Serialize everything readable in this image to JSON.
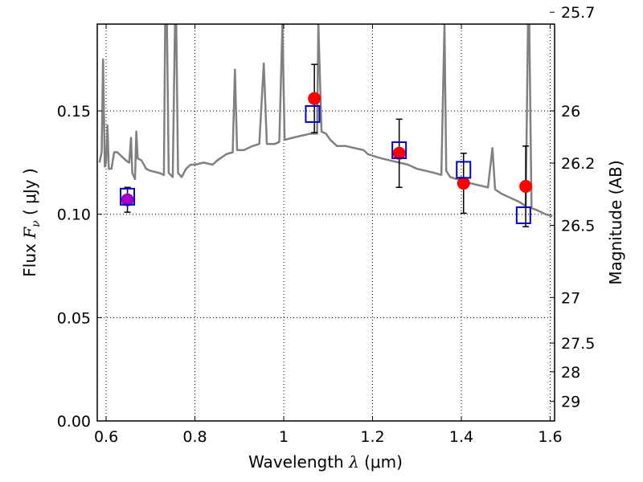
{
  "chart_data": {
    "type": "scatter",
    "xlabel": "Wavelength",
    "xlabel_math": "λ",
    "xlabel_unit": "(μm)",
    "ylabel": "Flux",
    "ylabel_math": "F",
    "ylabel_math_sub": "ν",
    "ylabel_unit": "( μJy )",
    "y2label": "Magnitude (AB)",
    "xlim": [
      0.58,
      1.61
    ],
    "ylim": [
      0.0,
      0.192
    ],
    "grid": true,
    "x_ticks": [
      {
        "value": 0.6,
        "label": "0.6"
      },
      {
        "value": 0.8,
        "label": "0.8"
      },
      {
        "value": 1.0,
        "label": "1"
      },
      {
        "value": 1.2,
        "label": "1.2"
      },
      {
        "value": 1.4,
        "label": "1.4"
      },
      {
        "value": 1.6,
        "label": "1.6"
      }
    ],
    "y_ticks": [
      {
        "value": 0.0,
        "label": "0.00"
      },
      {
        "value": 0.05,
        "label": "0.05"
      },
      {
        "value": 0.1,
        "label": "0.10"
      },
      {
        "value": 0.15,
        "label": "0.15"
      }
    ],
    "y2_ticks": [
      {
        "value": 25.7,
        "label": "25.7"
      },
      {
        "value": 26.0,
        "label": "26"
      },
      {
        "value": 26.2,
        "label": "26.2"
      },
      {
        "value": 26.5,
        "label": "26.5"
      },
      {
        "value": 27.0,
        "label": "27"
      },
      {
        "value": 27.5,
        "label": "27.5"
      },
      {
        "value": 28.0,
        "label": "28"
      },
      {
        "value": 29.0,
        "label": "29"
      }
    ],
    "colors": {
      "model": "#808080",
      "observed": "#ff0000",
      "observed_blue_band": "#a000c8",
      "model_box": "#0000cc",
      "errorbar": "#000000"
    },
    "observed": [
      {
        "x": 0.648,
        "y": 0.107,
        "err": 0.006,
        "band": "blue"
      },
      {
        "x": 1.069,
        "y": 0.156,
        "err": 0.0165
      },
      {
        "x": 1.26,
        "y": 0.1295,
        "err": 0.0165
      },
      {
        "x": 1.405,
        "y": 0.115,
        "err": 0.0145
      },
      {
        "x": 1.545,
        "y": 0.1135,
        "err": 0.0195
      }
    ],
    "model_photometry": [
      {
        "x": 0.648,
        "y": 0.1085
      },
      {
        "x": 1.065,
        "y": 0.1485
      },
      {
        "x": 1.26,
        "y": 0.131
      },
      {
        "x": 1.405,
        "y": 0.1215
      },
      {
        "x": 1.54,
        "y": 0.0995
      }
    ],
    "model_spectrum": [
      [
        0.585,
        0.125
      ],
      [
        0.59,
        0.13
      ],
      [
        0.593,
        0.175
      ],
      [
        0.597,
        0.123
      ],
      [
        0.6,
        0.125
      ],
      [
        0.603,
        0.143
      ],
      [
        0.606,
        0.122
      ],
      [
        0.612,
        0.122
      ],
      [
        0.618,
        0.13
      ],
      [
        0.625,
        0.13
      ],
      [
        0.635,
        0.128
      ],
      [
        0.645,
        0.126
      ],
      [
        0.652,
        0.125
      ],
      [
        0.656,
        0.137
      ],
      [
        0.659,
        0.12
      ],
      [
        0.665,
        0.117
      ],
      [
        0.668,
        0.14
      ],
      [
        0.671,
        0.127
      ],
      [
        0.68,
        0.126
      ],
      [
        0.69,
        0.122
      ],
      [
        0.7,
        0.121
      ],
      [
        0.72,
        0.12
      ],
      [
        0.73,
        0.119
      ],
      [
        0.733,
        0.192
      ],
      [
        0.737,
        0.192
      ],
      [
        0.741,
        0.12
      ],
      [
        0.75,
        0.118
      ],
      [
        0.755,
        0.192
      ],
      [
        0.758,
        0.192
      ],
      [
        0.762,
        0.12
      ],
      [
        0.77,
        0.118
      ],
      [
        0.78,
        0.122
      ],
      [
        0.79,
        0.124
      ],
      [
        0.8,
        0.124
      ],
      [
        0.82,
        0.125
      ],
      [
        0.84,
        0.124
      ],
      [
        0.85,
        0.126
      ],
      [
        0.87,
        0.129
      ],
      [
        0.885,
        0.13
      ],
      [
        0.89,
        0.17
      ],
      [
        0.895,
        0.131
      ],
      [
        0.91,
        0.131
      ],
      [
        0.93,
        0.133
      ],
      [
        0.945,
        0.134
      ],
      [
        0.955,
        0.173
      ],
      [
        0.962,
        0.134
      ],
      [
        0.98,
        0.134
      ],
      [
        0.99,
        0.135
      ],
      [
        0.997,
        0.192
      ],
      [
        1.002,
        0.136
      ],
      [
        1.02,
        0.137
      ],
      [
        1.04,
        0.138
      ],
      [
        1.06,
        0.139
      ],
      [
        1.075,
        0.139
      ],
      [
        1.078,
        0.192
      ],
      [
        1.085,
        0.14
      ],
      [
        1.095,
        0.139
      ],
      [
        1.105,
        0.136
      ],
      [
        1.12,
        0.133
      ],
      [
        1.14,
        0.133
      ],
      [
        1.16,
        0.132
      ],
      [
        1.18,
        0.131
      ],
      [
        1.19,
        0.129
      ],
      [
        1.205,
        0.128
      ],
      [
        1.22,
        0.127
      ],
      [
        1.24,
        0.126
      ],
      [
        1.26,
        0.125
      ],
      [
        1.28,
        0.124
      ],
      [
        1.3,
        0.122
      ],
      [
        1.32,
        0.121
      ],
      [
        1.34,
        0.12
      ],
      [
        1.355,
        0.119
      ],
      [
        1.362,
        0.192
      ],
      [
        1.366,
        0.121
      ],
      [
        1.375,
        0.118
      ],
      [
        1.39,
        0.117
      ],
      [
        1.4,
        0.118
      ],
      [
        1.405,
        0.116
      ],
      [
        1.42,
        0.115
      ],
      [
        1.44,
        0.114
      ],
      [
        1.46,
        0.113
      ],
      [
        1.47,
        0.132
      ],
      [
        1.476,
        0.112
      ],
      [
        1.49,
        0.11
      ],
      [
        1.51,
        0.108
      ],
      [
        1.53,
        0.106
      ],
      [
        1.545,
        0.104
      ],
      [
        1.55,
        0.192
      ],
      [
        1.553,
        0.192
      ],
      [
        1.558,
        0.103
      ],
      [
        1.57,
        0.102
      ],
      [
        1.58,
        0.101
      ],
      [
        1.59,
        0.1
      ],
      [
        1.605,
        0.099
      ]
    ]
  }
}
